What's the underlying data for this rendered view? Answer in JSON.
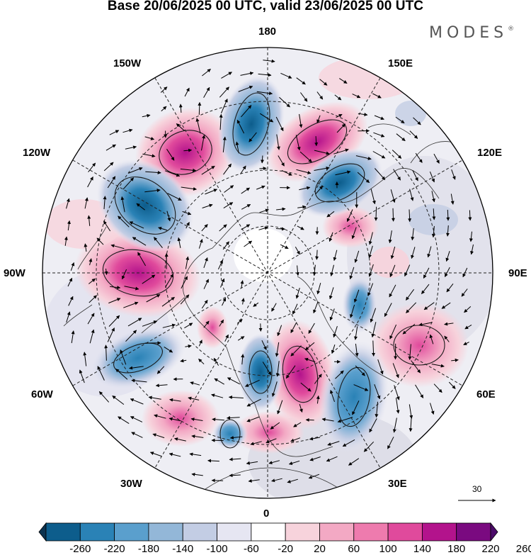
{
  "title": "Base 20/06/2025 00 UTC, valid 23/06/2025 00 UTC",
  "brand": {
    "text": "MODES",
    "mark": "®"
  },
  "longitude_labels": {
    "top": "180",
    "bottom": "0",
    "left": "90W",
    "right": "90E",
    "upper_left_1": "150W",
    "upper_left_2": "120W",
    "upper_right_1": "150E",
    "upper_right_2": "120E",
    "lower_left_1": "60W",
    "lower_left_2": "30W",
    "lower_right_1": "60E",
    "lower_right_2": "30E"
  },
  "reference_vector": {
    "label": "30"
  },
  "colorbar": {
    "labels": [
      "-260",
      "-220",
      "-180",
      "-140",
      "-100",
      "-60",
      "-20",
      "20",
      "60",
      "100",
      "140",
      "180",
      "220",
      "260"
    ],
    "colors": [
      "#0b3350",
      "#0d5d8c",
      "#2a82b6",
      "#5a9fcd",
      "#93b7d8",
      "#c3cde4",
      "#e6e6f2",
      "#ffffff",
      "#f7d3dc",
      "#f3a9c4",
      "#ee7bae",
      "#e04a9c",
      "#b3138c",
      "#7a0a80",
      "#4c0a6a"
    ]
  },
  "anomalies": [
    {
      "sign": "neg",
      "intensity": 0.55,
      "note": "near 180 north"
    },
    {
      "sign": "pos",
      "intensity": 0.6,
      "note": "near 150E"
    },
    {
      "sign": "pos",
      "intensity": 0.65,
      "note": "near 135W"
    },
    {
      "sign": "neg",
      "intensity": 0.9,
      "note": "near 110W"
    },
    {
      "sign": "pos",
      "intensity": 0.75,
      "note": "near 90W"
    },
    {
      "sign": "neg",
      "intensity": 0.6,
      "note": "near 120E"
    },
    {
      "sign": "neg",
      "intensity": 0.55,
      "note": "near 65W"
    },
    {
      "sign": "neg",
      "intensity": 0.6,
      "note": "near 15W"
    },
    {
      "sign": "pos",
      "intensity": 0.8,
      "note": "near 10E"
    },
    {
      "sign": "neg",
      "intensity": 0.55,
      "note": "near 35E"
    },
    {
      "sign": "pos",
      "intensity": 0.5,
      "note": "near 70E"
    }
  ]
}
